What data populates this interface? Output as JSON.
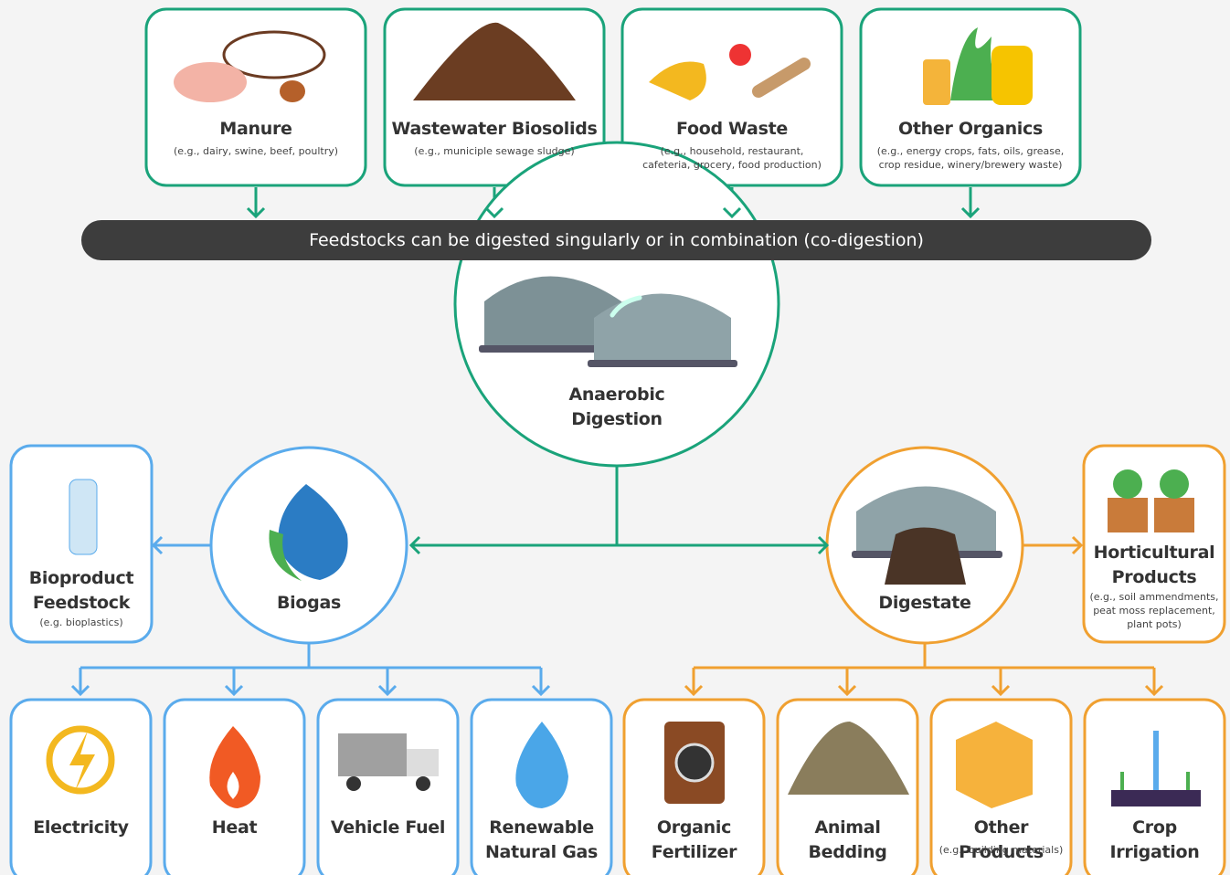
{
  "feedstocks": [
    {
      "title": "Manure",
      "note": "(e.g., dairy, swine, beef, poultry)"
    },
    {
      "title": "Wastewater Biosolids",
      "note": "(e.g., municiple sewage sludge)"
    },
    {
      "title": "Food Waste",
      "note": "(e.g., household, restaurant, cafeteria, grocery, food production)"
    },
    {
      "title": "Other Organics",
      "note": "(e.g., energy crops, fats, oils, grease, crop residue, winery/brewery waste)"
    }
  ],
  "banner": "Feedstocks can be digested singularly or in combination (co-digestion)",
  "digestion": "Anaerobic Digestion",
  "biogas": {
    "title": "Biogas",
    "side": {
      "title": "Bioproduct Feedstock",
      "note": "(e.g. bioplastics)"
    },
    "uses": [
      {
        "title": "Electricity"
      },
      {
        "title": "Heat"
      },
      {
        "title": "Vehicle Fuel"
      },
      {
        "title": "Renewable Natural Gas"
      }
    ]
  },
  "digestate": {
    "title": "Digestate",
    "side": {
      "title": "Horticultural Products",
      "note": "(e.g., soil ammendments, peat moss replacement, plant pots)"
    },
    "uses": [
      {
        "title": "Organic Fertilizer"
      },
      {
        "title": "Animal Bedding"
      },
      {
        "title": "Other Products",
        "note": "(e.g., building materials)"
      },
      {
        "title": "Crop Irrigation"
      }
    ]
  }
}
